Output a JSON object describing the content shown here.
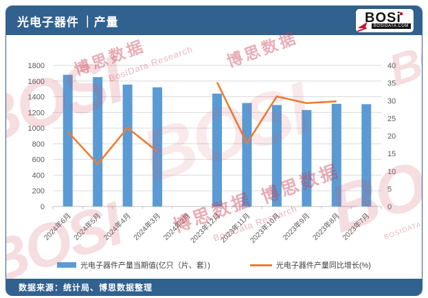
{
  "header": {
    "title_left": "光电子器件",
    "separator": "|",
    "title_right": "产量",
    "logo": {
      "brand": "BOSi",
      "domain": "BOSIDATA.COM"
    }
  },
  "footer": {
    "source": "数据来源：统计局、博思数据整理"
  },
  "watermarks": {
    "brand": "BOSI",
    "cn": "博思数据",
    "en": "BosiData Research",
    "domain": "BOSIDATA.COM"
  },
  "chart_data": {
    "type": "bar",
    "subtype": "bar-line-combo",
    "categories": [
      "2024年6月",
      "2024年5月",
      "2024年4月",
      "2024年3月",
      "2024年2月",
      "2023年12月",
      "2023年11月",
      "2023年10月",
      "2023年9月",
      "2023年8月",
      "2023年7月"
    ],
    "series": [
      {
        "name": "光电子器件产量当期值(亿只（片、套）)",
        "type": "bar",
        "axis": "left",
        "color": "#5B9BD5",
        "values": [
          1680,
          1650,
          1555,
          1520,
          null,
          1440,
          1320,
          1295,
          1230,
          1310,
          1305
        ]
      },
      {
        "name": "光电子器件产量同比增长(%)",
        "type": "line",
        "axis": "right",
        "color": "#ED7D31",
        "values": [
          21.2,
          12,
          22.3,
          15.6,
          null,
          35.2,
          17.9,
          31.2,
          29.3,
          29.8,
          null
        ]
      }
    ],
    "left_axis": {
      "min": 0,
      "max": 1800,
      "step": 200,
      "ticks": [
        0,
        200,
        400,
        600,
        800,
        1000,
        1200,
        1400,
        1600,
        1800
      ]
    },
    "right_axis": {
      "min": 0,
      "max": 40,
      "step": 5,
      "ticks": [
        0,
        5,
        10,
        15,
        20,
        25,
        30,
        35,
        40
      ]
    },
    "grid": true,
    "legend_position": "bottom",
    "x_label_rotation": -45
  }
}
